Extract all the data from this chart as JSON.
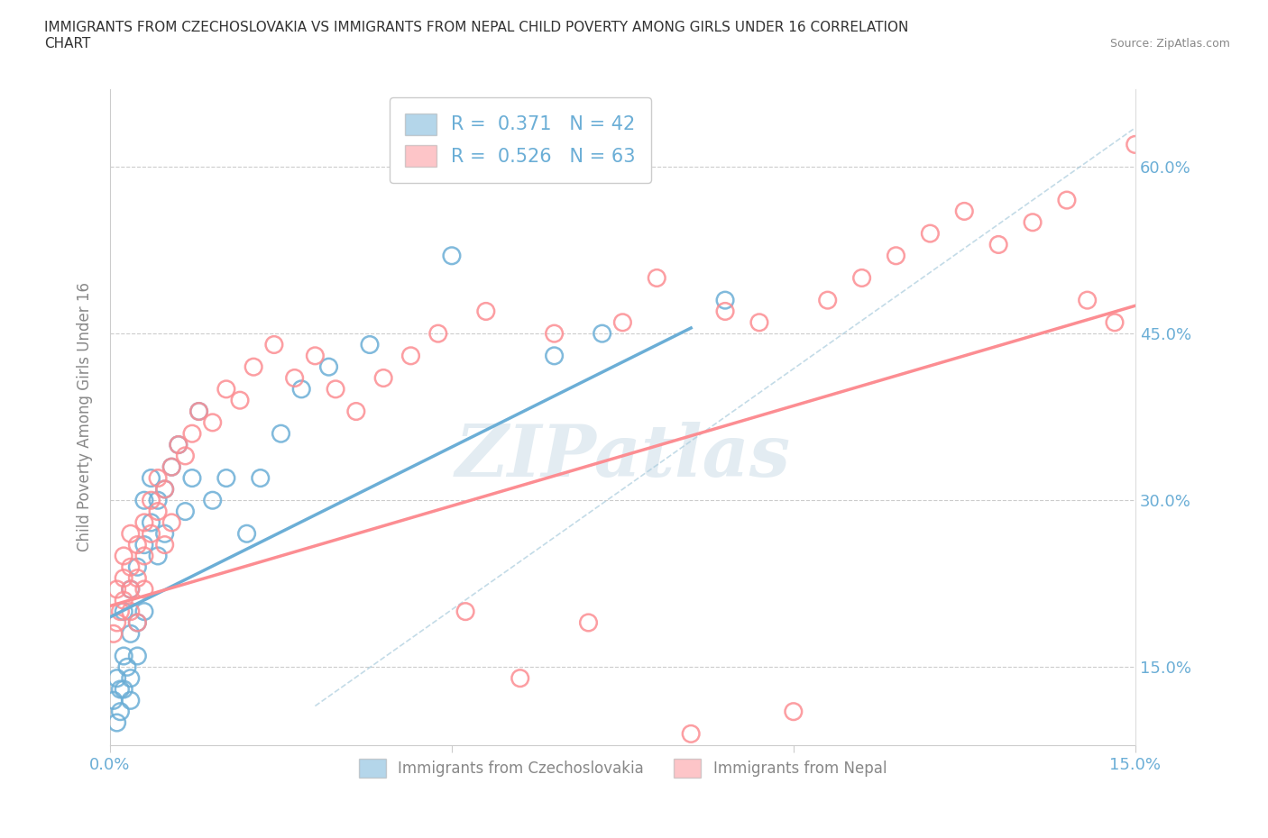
{
  "title": "IMMIGRANTS FROM CZECHOSLOVAKIA VS IMMIGRANTS FROM NEPAL CHILD POVERTY AMONG GIRLS UNDER 16 CORRELATION\nCHART",
  "source_text": "Source: ZipAtlas.com",
  "ylabel": "Child Poverty Among Girls Under 16",
  "watermark": "ZIPatlas",
  "color_czecho": "#6baed6",
  "color_nepal": "#fc8d92",
  "xlim": [
    0.0,
    0.15
  ],
  "ylim": [
    0.08,
    0.67
  ],
  "yticks": [
    0.15,
    0.3,
    0.45,
    0.6
  ],
  "ytick_labels": [
    "15.0%",
    "30.0%",
    "45.0%",
    "60.0%"
  ],
  "czecho_scatter_x": [
    0.0005,
    0.001,
    0.001,
    0.0015,
    0.0015,
    0.002,
    0.002,
    0.002,
    0.0025,
    0.003,
    0.003,
    0.003,
    0.003,
    0.004,
    0.004,
    0.004,
    0.005,
    0.005,
    0.005,
    0.006,
    0.006,
    0.007,
    0.007,
    0.008,
    0.008,
    0.009,
    0.01,
    0.011,
    0.012,
    0.013,
    0.015,
    0.017,
    0.02,
    0.022,
    0.025,
    0.028,
    0.032,
    0.038,
    0.05,
    0.065,
    0.072,
    0.09
  ],
  "czecho_scatter_y": [
    0.12,
    0.1,
    0.14,
    0.13,
    0.11,
    0.16,
    0.13,
    0.2,
    0.15,
    0.18,
    0.22,
    0.14,
    0.12,
    0.24,
    0.19,
    0.16,
    0.26,
    0.2,
    0.3,
    0.28,
    0.32,
    0.3,
    0.25,
    0.31,
    0.27,
    0.33,
    0.35,
    0.29,
    0.32,
    0.38,
    0.3,
    0.32,
    0.27,
    0.32,
    0.36,
    0.4,
    0.42,
    0.44,
    0.52,
    0.43,
    0.45,
    0.48
  ],
  "nepal_scatter_x": [
    0.0005,
    0.001,
    0.001,
    0.0015,
    0.002,
    0.002,
    0.002,
    0.003,
    0.003,
    0.003,
    0.003,
    0.004,
    0.004,
    0.004,
    0.005,
    0.005,
    0.005,
    0.006,
    0.006,
    0.007,
    0.007,
    0.008,
    0.008,
    0.009,
    0.009,
    0.01,
    0.011,
    0.012,
    0.013,
    0.015,
    0.017,
    0.019,
    0.021,
    0.024,
    0.027,
    0.03,
    0.033,
    0.036,
    0.04,
    0.044,
    0.048,
    0.052,
    0.055,
    0.06,
    0.065,
    0.07,
    0.075,
    0.08,
    0.085,
    0.09,
    0.095,
    0.1,
    0.105,
    0.11,
    0.115,
    0.12,
    0.125,
    0.13,
    0.135,
    0.14,
    0.143,
    0.147,
    0.15
  ],
  "nepal_scatter_y": [
    0.18,
    0.22,
    0.19,
    0.2,
    0.25,
    0.21,
    0.23,
    0.24,
    0.2,
    0.27,
    0.22,
    0.26,
    0.23,
    0.19,
    0.28,
    0.25,
    0.22,
    0.3,
    0.27,
    0.32,
    0.29,
    0.31,
    0.26,
    0.33,
    0.28,
    0.35,
    0.34,
    0.36,
    0.38,
    0.37,
    0.4,
    0.39,
    0.42,
    0.44,
    0.41,
    0.43,
    0.4,
    0.38,
    0.41,
    0.43,
    0.45,
    0.2,
    0.47,
    0.14,
    0.45,
    0.19,
    0.46,
    0.5,
    0.09,
    0.47,
    0.46,
    0.11,
    0.48,
    0.5,
    0.52,
    0.54,
    0.56,
    0.53,
    0.55,
    0.57,
    0.48,
    0.46,
    0.62
  ],
  "czecho_line_x": [
    0.0,
    0.085
  ],
  "czecho_line_y": [
    0.195,
    0.455
  ],
  "nepal_line_x": [
    0.0,
    0.15
  ],
  "nepal_line_y": [
    0.205,
    0.475
  ],
  "diag_line_x": [
    0.03,
    0.15
  ],
  "diag_line_y": [
    0.115,
    0.635
  ]
}
